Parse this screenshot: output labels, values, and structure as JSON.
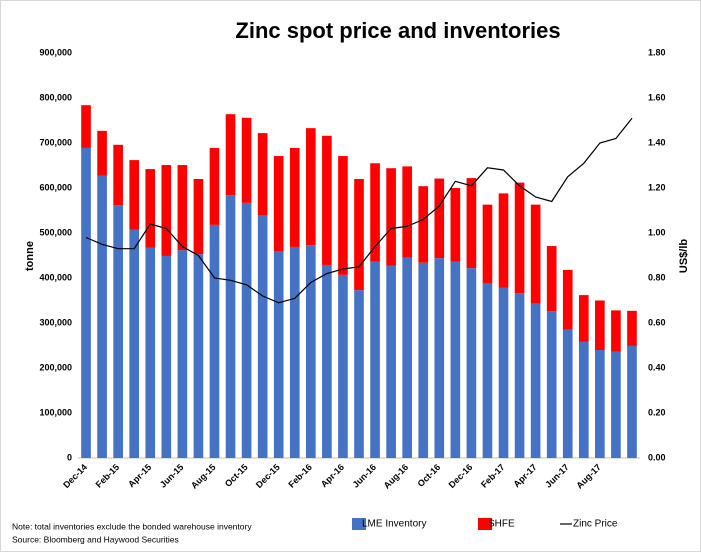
{
  "chart_data": {
    "type": "bar",
    "stacked": true,
    "title": "Zinc spot price and inventories",
    "y_label": "tonne",
    "y2_label": "US$/lb",
    "categories": [
      "Dec-14",
      null,
      "Feb-15",
      null,
      "Apr-15",
      null,
      "Jun-15",
      null,
      "Aug-15",
      null,
      "Oct-15",
      null,
      "Dec-15",
      null,
      "Feb-16",
      null,
      "Apr-16",
      null,
      "Jun-16",
      null,
      "Aug-16",
      null,
      "Oct-16",
      null,
      "Dec-16",
      null,
      "Feb-17",
      null,
      "Apr-17",
      null,
      "Jun-17",
      null,
      "Aug-17",
      null,
      null
    ],
    "series": [
      {
        "name": "LME Inventory",
        "color": "#4472c4",
        "values": [
          689000,
          627000,
          562000,
          507000,
          467000,
          449000,
          462000,
          453000,
          518000,
          584000,
          567000,
          540000,
          460000,
          469000,
          473000,
          429000,
          407000,
          373000,
          436000,
          427000,
          445000,
          434000,
          444000,
          436000,
          422000,
          388000,
          378000,
          366000,
          343000,
          326000,
          285000,
          258000,
          240000,
          236000,
          249000
        ]
      },
      {
        "name": "SHFE",
        "color": "#ff0000",
        "values": [
          95000,
          100000,
          134000,
          155000,
          175000,
          202000,
          189000,
          167000,
          171000,
          180000,
          189000,
          182000,
          211000,
          220000,
          260000,
          287000,
          264000,
          247000,
          219000,
          217000,
          203000,
          170000,
          177000,
          164000,
          200000,
          175000,
          210000,
          246000,
          220000,
          145000,
          133000,
          104000,
          110000,
          92000,
          78000
        ]
      },
      {
        "name": "Zinc Price",
        "color": "#000000",
        "type": "line",
        "axis": "y2",
        "values": [
          0.98,
          0.95,
          0.93,
          0.93,
          1.04,
          1.02,
          0.94,
          0.9,
          0.8,
          0.79,
          0.77,
          0.72,
          0.69,
          0.71,
          0.78,
          0.82,
          0.84,
          0.85,
          0.94,
          1.02,
          1.03,
          1.06,
          1.12,
          1.23,
          1.21,
          1.29,
          1.28,
          1.21,
          1.16,
          1.14,
          1.25,
          1.31,
          1.4,
          1.42,
          1.51
        ]
      }
    ],
    "ylim": [
      0,
      900000
    ],
    "yticks": [
      {
        "value": 0,
        "label": "0"
      },
      {
        "value": 100000,
        "label": "100,000"
      },
      {
        "value": 200000,
        "label": "200,000"
      },
      {
        "value": 300000,
        "label": "300,000"
      },
      {
        "value": 400000,
        "label": "400,000"
      },
      {
        "value": 500000,
        "label": "500,000"
      },
      {
        "value": 600000,
        "label": "600,000"
      },
      {
        "value": 700000,
        "label": "700,000"
      },
      {
        "value": 800000,
        "label": "800,000"
      },
      {
        "value": 900000,
        "label": "900,000"
      }
    ],
    "y2lim": [
      0,
      1.8
    ],
    "y2ticks": [
      {
        "value": 0,
        "label": "0.00"
      },
      {
        "value": 0.2,
        "label": "0.20"
      },
      {
        "value": 0.4,
        "label": "0.40"
      },
      {
        "value": 0.6,
        "label": "0.60"
      },
      {
        "value": 0.8,
        "label": "0.80"
      },
      {
        "value": 1.0,
        "label": "1.00"
      },
      {
        "value": 1.2,
        "label": "1.20"
      },
      {
        "value": 1.4,
        "label": "1.40"
      },
      {
        "value": 1.6,
        "label": "1.60"
      },
      {
        "value": 1.8,
        "label": "1.80"
      }
    ],
    "notes": [
      "Note: total inventories exclude the bonded warehouse inventory",
      "Source: Bloomberg and Haywood Securities"
    ]
  }
}
